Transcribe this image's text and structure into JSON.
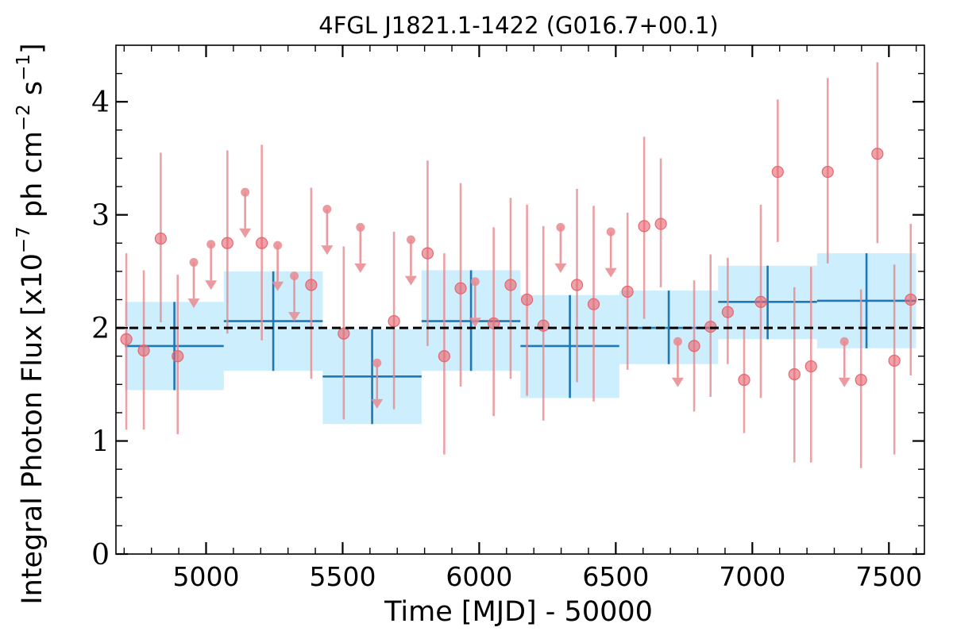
{
  "chart_data": {
    "type": "scatter",
    "title": "4FGL J1821.1-1422 (G016.7+00.1)",
    "xlabel": "Time [MJD] - 50000",
    "ylabel_parts": {
      "a": "Integral Photon Flux [x10",
      "a_sup": "−7",
      "b": " ph cm",
      "b_sup": "−2",
      "c": " s",
      "c_sup": "−1",
      "d": "]"
    },
    "xlim": [
      4670,
      7630
    ],
    "ylim": [
      0,
      4.5
    ],
    "xticks": [
      5000,
      5500,
      6000,
      6500,
      7000,
      7500
    ],
    "xtick_labels": [
      "5000",
      "5500",
      "6000",
      "6500",
      "7000",
      "7500"
    ],
    "yticks": [
      0,
      1,
      2,
      3,
      4
    ],
    "ytick_labels": [
      "0",
      "1",
      "2",
      "3",
      "4"
    ],
    "average_flux": 2.0,
    "colors": {
      "points": "#e8646e",
      "points_err": "#e88a8f",
      "bins_fill": "#cdeefc",
      "bins_line": "#1f77b4",
      "average": "#000000"
    },
    "short_bins": [
      {
        "x": 4708,
        "y": 1.9,
        "ylo": 1.1,
        "yhi": 2.66,
        "ul": false
      },
      {
        "x": 4772,
        "y": 1.8,
        "ylo": 1.1,
        "yhi": 2.51,
        "ul": false
      },
      {
        "x": 4834,
        "y": 2.79,
        "ylo": 2.05,
        "yhi": 3.55,
        "ul": false
      },
      {
        "x": 4896,
        "y": 1.75,
        "ylo": 1.06,
        "yhi": 2.47,
        "ul": false
      },
      {
        "x": 4955,
        "y": 2.58,
        "ul": true
      },
      {
        "x": 5018,
        "y": 2.74,
        "ul": true
      },
      {
        "x": 5078,
        "y": 2.75,
        "ylo": 1.95,
        "yhi": 3.57,
        "ul": false
      },
      {
        "x": 5143,
        "y": 3.2,
        "ul": true
      },
      {
        "x": 5204,
        "y": 2.75,
        "ylo": 1.89,
        "yhi": 3.62,
        "ul": false
      },
      {
        "x": 5262,
        "y": 2.73,
        "ul": true
      },
      {
        "x": 5323,
        "y": 2.46,
        "ul": true
      },
      {
        "x": 5385,
        "y": 2.38,
        "ylo": 1.55,
        "yhi": 3.24,
        "ul": false
      },
      {
        "x": 5443,
        "y": 3.05,
        "ul": true
      },
      {
        "x": 5504,
        "y": 1.95,
        "ylo": 1.19,
        "yhi": 2.72,
        "ul": false
      },
      {
        "x": 5565,
        "y": 2.89,
        "ul": true
      },
      {
        "x": 5626,
        "y": 1.69,
        "ul": true
      },
      {
        "x": 5688,
        "y": 2.06,
        "ylo": 1.28,
        "yhi": 2.85,
        "ul": false
      },
      {
        "x": 5750,
        "y": 2.78,
        "ul": true
      },
      {
        "x": 5811,
        "y": 2.66,
        "ylo": 1.84,
        "yhi": 3.48,
        "ul": false
      },
      {
        "x": 5872,
        "y": 1.75,
        "ylo": 0.88,
        "yhi": 2.66,
        "ul": false
      },
      {
        "x": 5932,
        "y": 2.35,
        "ylo": 1.48,
        "yhi": 3.28,
        "ul": false
      },
      {
        "x": 5985,
        "y": 2.41,
        "ul": true
      },
      {
        "x": 6053,
        "y": 2.04,
        "ylo": 1.22,
        "yhi": 2.89,
        "ul": false
      },
      {
        "x": 6115,
        "y": 2.38,
        "ylo": 1.55,
        "yhi": 3.15,
        "ul": false
      },
      {
        "x": 6175,
        "y": 2.25,
        "ylo": 1.4,
        "yhi": 3.09,
        "ul": false
      },
      {
        "x": 6235,
        "y": 2.02,
        "ylo": 1.18,
        "yhi": 2.9,
        "ul": false
      },
      {
        "x": 6298,
        "y": 2.89,
        "ul": true
      },
      {
        "x": 6358,
        "y": 2.38,
        "ylo": 1.52,
        "yhi": 3.23,
        "ul": false
      },
      {
        "x": 6419,
        "y": 2.21,
        "ylo": 1.35,
        "yhi": 3.08,
        "ul": false
      },
      {
        "x": 6482,
        "y": 2.85,
        "ul": true
      },
      {
        "x": 6543,
        "y": 2.32,
        "ylo": 1.63,
        "yhi": 3.02,
        "ul": false
      },
      {
        "x": 6604,
        "y": 2.9,
        "ylo": 2.08,
        "yhi": 3.69,
        "ul": false
      },
      {
        "x": 6665,
        "y": 2.92,
        "ylo": 2.36,
        "yhi": 3.5,
        "ul": false
      },
      {
        "x": 6727,
        "y": 1.88,
        "ul": true
      },
      {
        "x": 6787,
        "y": 1.84,
        "ylo": 1.26,
        "yhi": 2.42,
        "ul": false
      },
      {
        "x": 6847,
        "y": 2.01,
        "ylo": 1.39,
        "yhi": 2.65,
        "ul": false
      },
      {
        "x": 6910,
        "y": 2.14,
        "ylo": 1.68,
        "yhi": 2.62,
        "ul": false
      },
      {
        "x": 6970,
        "y": 1.54,
        "ylo": 1.07,
        "yhi": 2.01,
        "ul": false
      },
      {
        "x": 7031,
        "y": 2.23,
        "ylo": 1.38,
        "yhi": 3.09,
        "ul": false
      },
      {
        "x": 7093,
        "y": 3.38,
        "ylo": 2.76,
        "yhi": 4.02,
        "ul": false
      },
      {
        "x": 7154,
        "y": 1.59,
        "ylo": 0.81,
        "yhi": 2.36,
        "ul": false
      },
      {
        "x": 7215,
        "y": 1.66,
        "ylo": 0.81,
        "yhi": 2.54,
        "ul": false
      },
      {
        "x": 7276,
        "y": 3.38,
        "ylo": 2.57,
        "yhi": 4.21,
        "ul": false
      },
      {
        "x": 7337,
        "y": 1.88,
        "ul": true
      },
      {
        "x": 7398,
        "y": 1.54,
        "ylo": 0.76,
        "yhi": 2.34,
        "ul": false
      },
      {
        "x": 7458,
        "y": 3.54,
        "ylo": 2.75,
        "yhi": 4.35,
        "ul": false
      },
      {
        "x": 7520,
        "y": 1.71,
        "ylo": 0.88,
        "yhi": 2.56,
        "ul": false
      },
      {
        "x": 7580,
        "y": 2.25,
        "ylo": 1.58,
        "yhi": 2.92,
        "ul": false
      }
    ],
    "long_bins": [
      {
        "x0": 4703,
        "x1": 5065,
        "xc": 4884,
        "y": 1.84,
        "ylo": 1.45,
        "yhi": 2.23
      },
      {
        "x0": 5065,
        "x1": 5427,
        "xc": 5246,
        "y": 2.06,
        "ylo": 1.62,
        "yhi": 2.5
      },
      {
        "x0": 5427,
        "x1": 5789,
        "xc": 5608,
        "y": 1.57,
        "ylo": 1.15,
        "yhi": 1.99
      },
      {
        "x0": 5789,
        "x1": 6151,
        "xc": 5970,
        "y": 2.06,
        "ylo": 1.62,
        "yhi": 2.51
      },
      {
        "x0": 6151,
        "x1": 6513,
        "xc": 6332,
        "y": 1.84,
        "ylo": 1.38,
        "yhi": 2.29
      },
      {
        "x0": 6513,
        "x1": 6875,
        "xc": 6694,
        "y": 2.0,
        "ylo": 1.68,
        "yhi": 2.33
      },
      {
        "x0": 6875,
        "x1": 7237,
        "xc": 7056,
        "y": 2.23,
        "ylo": 1.9,
        "yhi": 2.55
      },
      {
        "x0": 7237,
        "x1": 7599,
        "xc": 7418,
        "y": 2.24,
        "ylo": 1.82,
        "yhi": 2.66
      }
    ]
  }
}
